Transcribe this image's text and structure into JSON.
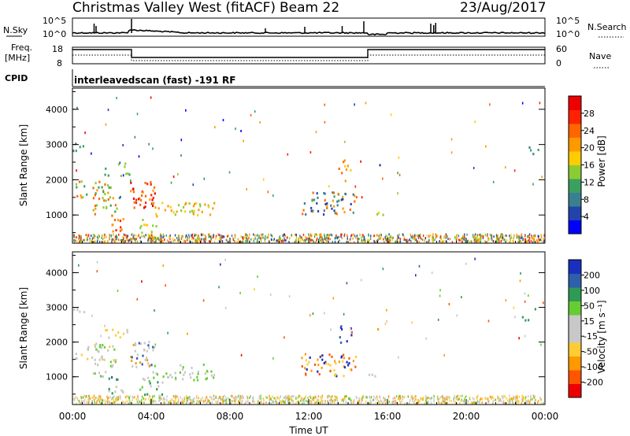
{
  "header": {
    "site": "Christmas Valley West (fitACF)",
    "beam": "Beam 22",
    "date": "23/Aug/2017"
  },
  "nsky_panel": {
    "left_label": "N.Sky",
    "right_label": "N.Search",
    "left_ticks": [
      "10^5",
      "10^0"
    ],
    "right_ticks": [
      "10^5",
      "10^0"
    ]
  },
  "freq_panel": {
    "left_label_1": "Freq.",
    "left_label_2": "[MHz]",
    "left_ticks": [
      "18",
      "8"
    ],
    "right_label": "Nave",
    "right_ticks": [
      "60",
      "0"
    ]
  },
  "cpid": {
    "label": "CPID",
    "text": "interleavedscan (fast) -191 RF"
  },
  "colors": {
    "scale": [
      "#0000ff",
      "#1f3fa8",
      "#2e78a0",
      "#3aa06a",
      "#66cc33",
      "#c8c8c8",
      "#ffcc00",
      "#ff8800",
      "#ff3300",
      "#ff0000"
    ]
  },
  "chart_data": [
    {
      "type": "heatmap",
      "name": "power-panel",
      "ylabel": "Slant Range [km]",
      "yticks": [
        "1000",
        "2000",
        "3000",
        "4000"
      ],
      "ylim": [
        200,
        4600
      ],
      "xlim_hours": [
        0,
        24
      ],
      "colorbar_label": "Power [dB]",
      "colorbar_ticks": [
        "4",
        "8",
        "12",
        "16",
        "20",
        "24",
        "28"
      ],
      "colorbar_colors": [
        "#0000ff",
        "#2244aa",
        "#3a7f8f",
        "#3aa060",
        "#8ccc33",
        "#ffcc00",
        "#ff9900",
        "#ff6600",
        "#ff2200",
        "#ee0000"
      ]
    },
    {
      "type": "heatmap",
      "name": "velocity-panel",
      "ylabel": "Slant Range [km]",
      "yticks": [
        "1000",
        "2000",
        "3000",
        "4000"
      ],
      "ylim": [
        200,
        4600
      ],
      "xlim_hours": [
        0,
        24
      ],
      "xlabel": "Time UT",
      "xticks": [
        "00:00",
        "04:00",
        "08:00",
        "12:00",
        "16:00",
        "20:00",
        "00:00"
      ],
      "colorbar_label": "Velocity [m s⁻¹]",
      "colorbar_ticks": [
        "-200",
        "-100",
        "-50",
        "-15",
        "15",
        "50",
        "100",
        "200"
      ],
      "colorbar_colors": [
        "#ee0000",
        "#ff5500",
        "#ff9900",
        "#ffcc33",
        "#c8c8c8",
        "#c8c8c8",
        "#66cc33",
        "#2e9a55",
        "#2e5faa",
        "#1a2fbf"
      ]
    }
  ]
}
